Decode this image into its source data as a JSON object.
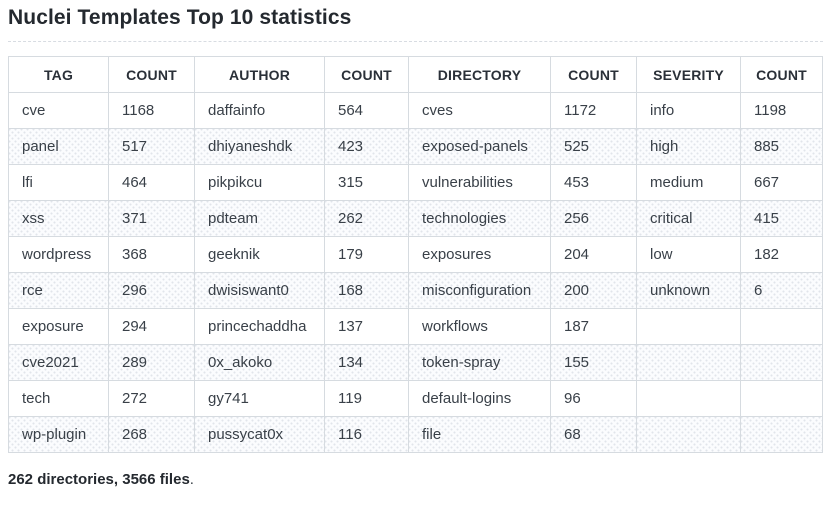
{
  "page": {
    "title": "Nuclei Templates Top 10 statistics",
    "summary": {
      "bold_text": "262 directories, 3566 files",
      "suffix": "."
    }
  },
  "colors": {
    "title_text": "#24292f",
    "header_text": "#2a3038",
    "cell_text": "#394048",
    "table_border": "#d6dbe0",
    "stripe_background": "#fbfcfe",
    "stripe_dots": "#e1e5eb",
    "dashed_rule": "#d8dce2",
    "page_background": "#ffffff"
  },
  "table": {
    "columns": [
      {
        "key": "tag",
        "label": "TAG"
      },
      {
        "key": "tag-count",
        "label": "COUNT"
      },
      {
        "key": "author",
        "label": "AUTHOR"
      },
      {
        "key": "author-count",
        "label": "COUNT"
      },
      {
        "key": "directory",
        "label": "DIRECTORY"
      },
      {
        "key": "directory-count",
        "label": "COUNT"
      },
      {
        "key": "severity",
        "label": "SEVERITY"
      },
      {
        "key": "severity-count",
        "label": "COUNT"
      }
    ],
    "rows": [
      [
        "cve",
        "1168",
        "daffainfo",
        "564",
        "cves",
        "1172",
        "info",
        "1198"
      ],
      [
        "panel",
        "517",
        "dhiyaneshdk",
        "423",
        "exposed-panels",
        "525",
        "high",
        "885"
      ],
      [
        "lfi",
        "464",
        "pikpikcu",
        "315",
        "vulnerabilities",
        "453",
        "medium",
        "667"
      ],
      [
        "xss",
        "371",
        "pdteam",
        "262",
        "technologies",
        "256",
        "critical",
        "415"
      ],
      [
        "wordpress",
        "368",
        "geeknik",
        "179",
        "exposures",
        "204",
        "low",
        "182"
      ],
      [
        "rce",
        "296",
        "dwisiswant0",
        "168",
        "misconfiguration",
        "200",
        "unknown",
        "6"
      ],
      [
        "exposure",
        "294",
        "princechaddha",
        "137",
        "workflows",
        "187",
        "",
        ""
      ],
      [
        "cve2021",
        "289",
        "0x_akoko",
        "134",
        "token-spray",
        "155",
        "",
        ""
      ],
      [
        "tech",
        "272",
        "gy741",
        "119",
        "default-logins",
        "96",
        "",
        ""
      ],
      [
        "wp-plugin",
        "268",
        "pussycat0x",
        "116",
        "file",
        "68",
        "",
        ""
      ]
    ]
  }
}
